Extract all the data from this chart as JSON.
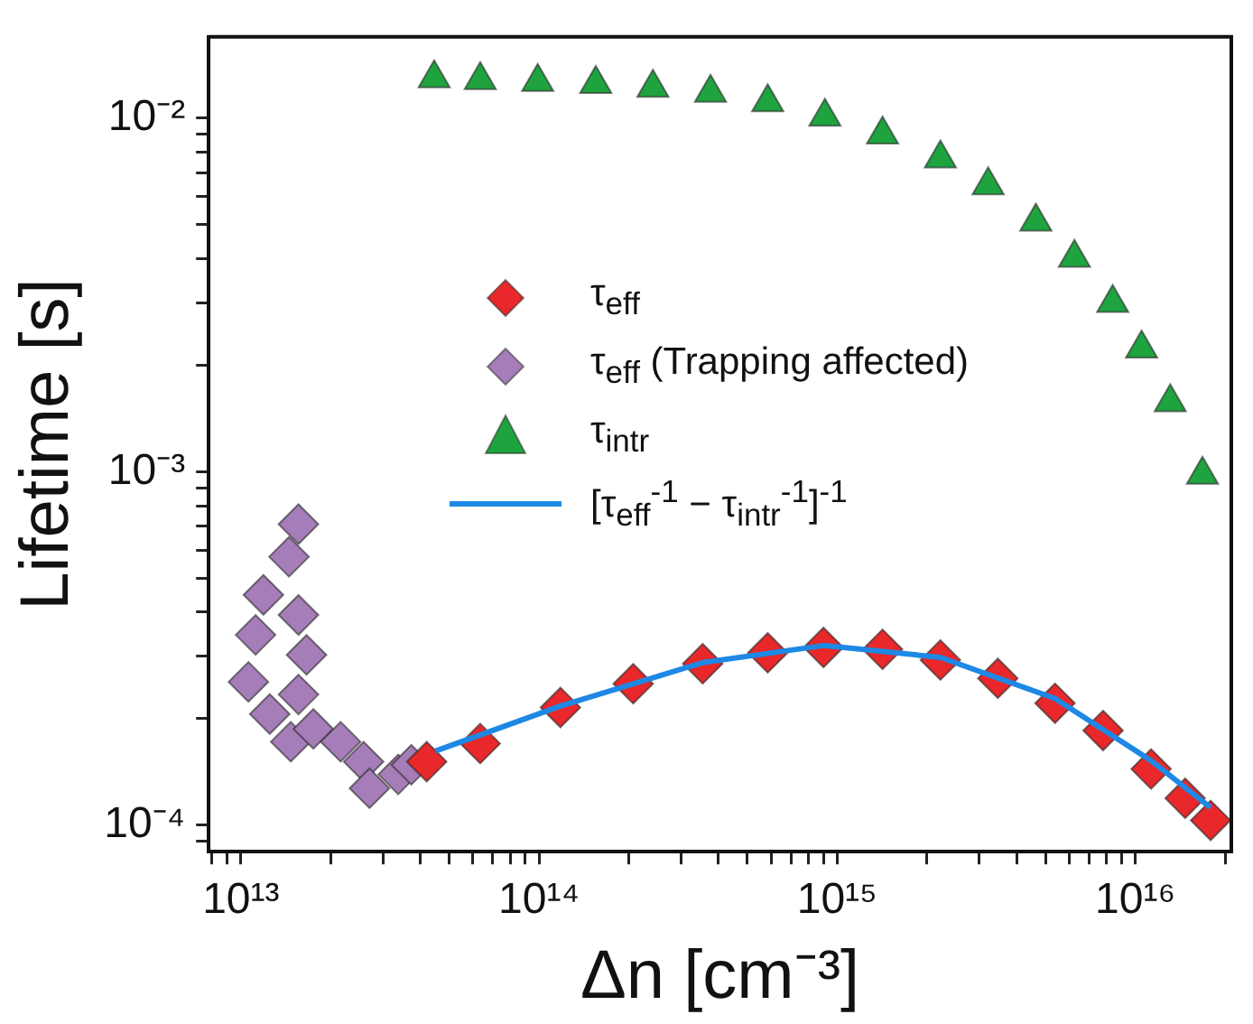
{
  "chart_data": {
    "type": "scatter",
    "xlabel": "Δn [cm⁻³]",
    "ylabel": "Lifetime [s]",
    "log": "xy",
    "grid": false,
    "legend": "center left",
    "xlim": [
      7800000000000.0,
      2.1e+16
    ],
    "ylim": [
      8.4e-05,
      0.017
    ],
    "xticks": [
      {
        "value": 8000000000000.0,
        "label": null
      },
      {
        "value": 9000000000000.0,
        "label": null
      },
      {
        "value": 10000000000000.0,
        "label": "10¹³"
      },
      {
        "value": 20000000000000.0,
        "label": null
      },
      {
        "value": 30000000000000.0,
        "label": null
      },
      {
        "value": 40000000000000.0,
        "label": null
      },
      {
        "value": 50000000000000.0,
        "label": null
      },
      {
        "value": 60000000000000.0,
        "label": null
      },
      {
        "value": 70000000000000.0,
        "label": null
      },
      {
        "value": 80000000000000.0,
        "label": null
      },
      {
        "value": 90000000000000.0,
        "label": null
      },
      {
        "value": 100000000000000.0,
        "label": "10¹⁴"
      },
      {
        "value": 200000000000000.0,
        "label": null
      },
      {
        "value": 300000000000000.0,
        "label": null
      },
      {
        "value": 400000000000000.0,
        "label": null
      },
      {
        "value": 500000000000000.0,
        "label": null
      },
      {
        "value": 600000000000000.0,
        "label": null
      },
      {
        "value": 700000000000000.0,
        "label": null
      },
      {
        "value": 800000000000000.0,
        "label": null
      },
      {
        "value": 900000000000000.0,
        "label": null
      },
      {
        "value": 1000000000000000.0,
        "label": "10¹⁵"
      },
      {
        "value": 2000000000000000.0,
        "label": null
      },
      {
        "value": 3000000000000000.0,
        "label": null
      },
      {
        "value": 4000000000000000.0,
        "label": null
      },
      {
        "value": 5000000000000000.0,
        "label": null
      },
      {
        "value": 6000000000000000.0,
        "label": null
      },
      {
        "value": 7000000000000000.0,
        "label": null
      },
      {
        "value": 8000000000000000.0,
        "label": null
      },
      {
        "value": 9000000000000000.0,
        "label": null
      },
      {
        "value": 1e+16,
        "label": "10¹⁶"
      },
      {
        "value": 2e+16,
        "label": null
      }
    ],
    "yticks": [
      {
        "value": 9e-05,
        "label": null
      },
      {
        "value": 0.0001,
        "label": "10⁻⁴"
      },
      {
        "value": 0.0002,
        "label": null
      },
      {
        "value": 0.0003,
        "label": null
      },
      {
        "value": 0.0004,
        "label": null
      },
      {
        "value": 0.0005,
        "label": null
      },
      {
        "value": 0.0006,
        "label": null
      },
      {
        "value": 0.0007,
        "label": null
      },
      {
        "value": 0.0008,
        "label": null
      },
      {
        "value": 0.0009,
        "label": null
      },
      {
        "value": 0.001,
        "label": "10⁻³"
      },
      {
        "value": 0.002,
        "label": null
      },
      {
        "value": 0.003,
        "label": null
      },
      {
        "value": 0.004,
        "label": null
      },
      {
        "value": 0.005,
        "label": null
      },
      {
        "value": 0.006,
        "label": null
      },
      {
        "value": 0.007,
        "label": null
      },
      {
        "value": 0.008,
        "label": null
      },
      {
        "value": 0.009,
        "label": null
      },
      {
        "value": 0.01,
        "label": "10⁻²"
      }
    ],
    "series": [
      {
        "name": "τ$_{eff}$",
        "color": "#e8282a",
        "marker": "diamond",
        "x": [
          42000000000000.0,
          63500000000000.0,
          118000000000000.0,
          207000000000000.0,
          354000000000000.0,
          585000000000000.0,
          900000000000000.0,
          1420000000000000.0,
          2220000000000000.0,
          3460000000000000.0,
          5380000000000000.0,
          7800000000000000.0,
          1.13e+16,
          1.47e+16,
          1.79e+16
        ],
        "values": [
          0.000151,
          0.00017,
          0.000215,
          0.000251,
          0.000286,
          0.000307,
          0.000318,
          0.000314,
          0.000293,
          0.00026,
          0.000221,
          0.000185,
          0.000144,
          0.000119,
          0.000103
        ]
      },
      {
        "name": "τ$_{eff}$ (Trapping affected)",
        "color": "#a57db8",
        "marker": "diamond",
        "x": [
          15600000000000.0,
          14500000000000.0,
          11900000000000.0,
          15600000000000.0,
          11200000000000.0,
          16600000000000.0,
          10600000000000.0,
          15600000000000.0,
          12500000000000.0,
          14700000000000.0,
          17500000000000.0,
          21600000000000.0,
          25800000000000.0,
          27000000000000.0,
          33700000000000.0,
          37300000000000.0
        ],
        "values": [
          0.00071,
          0.000574,
          0.000448,
          0.000393,
          0.000345,
          0.000303,
          0.000254,
          0.000234,
          0.000206,
          0.000172,
          0.000187,
          0.000172,
          0.000151,
          0.000127,
          0.000139,
          0.000148
        ]
      },
      {
        "name": "τ$_{intr}$",
        "color": "#1fa33f",
        "marker": "triangle",
        "x": [
          44500000000000.0,
          63500000000000.0,
          99000000000000.0,
          155000000000000.0,
          241000000000000.0,
          376000000000000.0,
          585000000000000.0,
          910000000000000.0,
          1420000000000000.0,
          2220000000000000.0,
          3210000000000000.0,
          4640000000000000.0,
          6250000000000000.0,
          8400000000000000.0,
          1.05e+16,
          1.31e+16,
          1.68e+16
        ],
        "values": [
          0.01297,
          0.01282,
          0.01267,
          0.0125,
          0.0122,
          0.0118,
          0.0111,
          0.0101,
          0.009,
          0.0077,
          0.00646,
          0.0051,
          0.00403,
          0.003,
          0.00223,
          0.00157,
          0.00098
        ]
      },
      {
        "name": "[τ$_{eff}$$^{-1}$ − τ$_{intr}$$^{-1}$]$^{-1}$",
        "type": "line",
        "color": "#1e88e5",
        "marker": "none",
        "x": [
          45000000000000.0,
          118000000000000.0,
          354000000000000.0,
          900000000000000.0,
          2220000000000000.0,
          5380000000000000.0,
          1.13e+16,
          1.79e+16
        ],
        "values": [
          0.000162,
          0.000217,
          0.000288,
          0.000322,
          0.000298,
          0.000228,
          0.000152,
          0.000112
        ]
      }
    ]
  }
}
